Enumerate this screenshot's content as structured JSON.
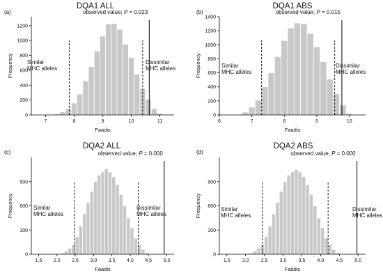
{
  "chart_data": [
    {
      "type": "bar",
      "panel_label": "(a)",
      "title": "DQA1  ALL",
      "xlabel": "Faadis",
      "ylabel": "Frequency",
      "xlim": [
        6.5,
        11.5
      ],
      "ylim": [
        0,
        1320
      ],
      "xticks": [
        7,
        8,
        9,
        10,
        11
      ],
      "yticks": [
        0,
        200,
        400,
        600,
        800,
        1000,
        1200
      ],
      "bin_width": 0.2,
      "bin_starts": [
        7.1,
        7.3,
        7.5,
        7.7,
        7.9,
        8.1,
        8.3,
        8.5,
        8.7,
        8.9,
        9.1,
        9.3,
        9.5,
        9.7,
        9.9,
        10.1,
        10.3,
        10.5,
        10.7,
        10.9
      ],
      "values": [
        5,
        15,
        40,
        85,
        160,
        280,
        460,
        650,
        860,
        1060,
        1220,
        1230,
        1150,
        950,
        770,
        550,
        350,
        210,
        85,
        20
      ],
      "low_cutoff": 7.83,
      "high_cutoff": 10.4,
      "observed_value": 10.63,
      "observed_text": "observed value; ",
      "p_text": "P = 0.023",
      "left_label": [
        "Similar",
        "MHC alleles"
      ],
      "right_label": [
        "Dissimilar",
        "MHC alleles"
      ]
    },
    {
      "type": "bar",
      "panel_label": "(b)",
      "title": "DQA1  ABS",
      "xlabel": "Faadis",
      "ylabel": "Frequency",
      "xlim": [
        6,
        10.5
      ],
      "ylim": [
        0,
        1400
      ],
      "xticks": [
        6,
        7,
        8,
        9,
        10
      ],
      "yticks": [
        0,
        200,
        400,
        600,
        800,
        1000,
        1200,
        1400
      ],
      "bin_width": 0.2,
      "bin_starts": [
        6.5,
        6.7,
        6.9,
        7.1,
        7.3,
        7.5,
        7.7,
        7.9,
        8.1,
        8.3,
        8.5,
        8.7,
        8.9,
        9.1,
        9.3,
        9.5,
        9.7,
        9.9
      ],
      "values": [
        10,
        40,
        110,
        210,
        400,
        600,
        830,
        1060,
        1240,
        1310,
        1300,
        1160,
        970,
        760,
        510,
        300,
        140,
        20
      ],
      "low_cutoff": 7.3,
      "high_cutoff": 9.55,
      "observed_value": 9.77,
      "observed_text": "observed value; ",
      "p_text": "P = 0.015",
      "left_label": [
        "Similar",
        "MHC alleles"
      ],
      "right_label": [
        "Dissimilar",
        "MHC alleles"
      ]
    },
    {
      "type": "bar",
      "panel_label": "(c)",
      "title": "DQA2  ALL",
      "xlabel": "Faadis",
      "ylabel": "Frequency",
      "xlim": [
        1.3,
        5.2
      ],
      "ylim": [
        0,
        1200
      ],
      "xticks": [
        1.5,
        2.0,
        2.5,
        3.0,
        3.5,
        4.0,
        4.5,
        5.0
      ],
      "xtick_labels": [
        "1.5",
        "2.0",
        "2.5",
        "3.0",
        "3.5",
        "4.0",
        "4.5",
        "5.0"
      ],
      "yticks": [
        0,
        300,
        600,
        900
      ],
      "bin_width": 0.1,
      "bin_starts": [
        2.0,
        2.1,
        2.2,
        2.3,
        2.4,
        2.5,
        2.6,
        2.7,
        2.8,
        2.9,
        3.0,
        3.1,
        3.2,
        3.3,
        3.4,
        3.5,
        3.6,
        3.7,
        3.8,
        3.9,
        4.0,
        4.1,
        4.2,
        4.3,
        4.4,
        4.5
      ],
      "values": [
        5,
        15,
        40,
        75,
        120,
        220,
        350,
        500,
        640,
        780,
        900,
        980,
        1020,
        1060,
        1020,
        960,
        860,
        740,
        600,
        450,
        330,
        200,
        120,
        60,
        20,
        5
      ],
      "low_cutoff": 2.48,
      "high_cutoff": 4.22,
      "observed_value": 4.93,
      "observed_text": "observed value; ",
      "p_text": "P = 0.000",
      "left_label": [
        "Similar",
        "MHC alleles"
      ],
      "right_label": [
        "Dissimilar",
        "MHC alleles"
      ]
    },
    {
      "type": "bar",
      "panel_label": "(d)",
      "title": "DQA2  ABS",
      "xlabel": "Faadis",
      "ylabel": "Frequency",
      "xlim": [
        1.3,
        5.2
      ],
      "ylim": [
        0,
        1200
      ],
      "xticks": [
        1.5,
        2.0,
        2.5,
        3.0,
        3.5,
        4.0,
        4.5,
        5.0
      ],
      "xtick_labels": [
        "1.5",
        "2.0",
        "2.5",
        "3.0",
        "3.5",
        "4.0",
        "4.5",
        "5.0"
      ],
      "yticks": [
        0,
        300,
        600,
        900
      ],
      "bin_width": 0.1,
      "bin_starts": [
        2.0,
        2.1,
        2.2,
        2.3,
        2.4,
        2.5,
        2.6,
        2.7,
        2.8,
        2.9,
        3.0,
        3.1,
        3.2,
        3.3,
        3.4,
        3.5,
        3.6,
        3.7,
        3.8,
        3.9,
        4.0,
        4.1,
        4.2,
        4.3,
        4.4,
        4.5
      ],
      "values": [
        5,
        15,
        40,
        75,
        120,
        220,
        350,
        500,
        640,
        780,
        900,
        980,
        1020,
        1050,
        1020,
        960,
        860,
        740,
        600,
        450,
        330,
        200,
        120,
        60,
        20,
        5
      ],
      "low_cutoff": 2.45,
      "high_cutoff": 4.2,
      "observed_value": 4.97,
      "observed_text": "observed value; ",
      "p_text": "P = 0.000",
      "left_label": [
        "Similar",
        "MHC alleles"
      ],
      "right_label": [
        "Dissimilar",
        "MHC alleles"
      ]
    }
  ],
  "colors": {
    "bar_fill": "#c8c8c8",
    "bar_stroke": "#ffffff",
    "axis": "#000000",
    "text": "#111111"
  }
}
